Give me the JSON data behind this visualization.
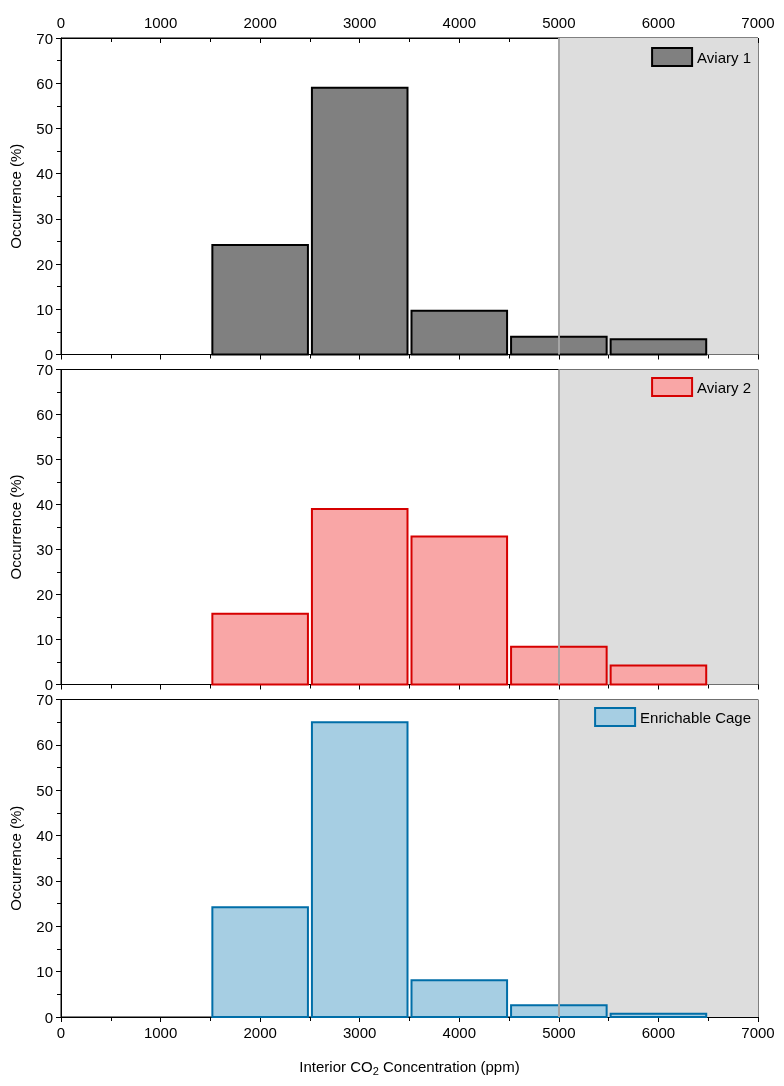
{
  "chart_data": [
    {
      "type": "histogram",
      "bins": [
        1500,
        2500,
        3500,
        4500,
        5500,
        6500
      ],
      "series": [
        {
          "name": "Aviary 1",
          "color": "#808080",
          "values": [
            24.2,
            59.0,
            9.7,
            3.9,
            3.4
          ]
        }
      ],
      "ylabel": "Occurrence (%)",
      "xlim": [
        0,
        7000
      ],
      "x2lim": [
        0,
        7000
      ],
      "x2ticks": [
        0,
        1000,
        2000,
        3000,
        4000,
        5000,
        6000,
        7000
      ],
      "ylim": [
        0,
        70
      ],
      "yticks": [
        0,
        10,
        20,
        30,
        40,
        50,
        60,
        70
      ],
      "tick_labels": "y",
      "bands": [
        {
          "axis": "x",
          "from": 5000,
          "to": 7000,
          "color": "#dddddd"
        }
      ],
      "ref_lines": [
        {
          "axis": "x",
          "value": 5000,
          "color": "#a6a6a6"
        }
      ],
      "legend": "top right",
      "grid": false
    },
    {
      "type": "histogram",
      "bins": [
        1500,
        2500,
        3500,
        4500,
        5500,
        6500
      ],
      "series": [
        {
          "name": "Aviary 2",
          "color": "#f9a6a6",
          "values": [
            15.7,
            39.0,
            32.9,
            8.4,
            4.2
          ]
        }
      ],
      "ylabel": "Occurrence (%)",
      "xlim": [
        0,
        7000
      ],
      "ylim": [
        0,
        70
      ],
      "yticks": [
        0,
        10,
        20,
        30,
        40,
        50,
        60,
        70
      ],
      "tick_labels": "y",
      "bands": [
        {
          "axis": "x",
          "from": 5000,
          "to": 7000,
          "color": "#dddddd"
        }
      ],
      "ref_lines": [
        {
          "axis": "x",
          "value": 5000,
          "color": "#a6a6a6"
        }
      ],
      "legend": "top right",
      "grid": false
    },
    {
      "type": "histogram",
      "bins": [
        1500,
        2500,
        3500,
        4500,
        5500,
        6500
      ],
      "series": [
        {
          "name": "Enrichable Cage",
          "color": "#a6cee3",
          "values": [
            24.2,
            65.0,
            8.1,
            2.6,
            0.7
          ]
        }
      ],
      "xlabel": "Interior CO$_{2}$ Concentration (ppm)",
      "ylabel": "Occurrence (%)",
      "xlim": [
        0,
        7000
      ],
      "xticks": [
        0,
        1000,
        2000,
        3000,
        4000,
        5000,
        6000,
        7000
      ],
      "ylim": [
        0,
        70
      ],
      "yticks": [
        0,
        10,
        20,
        30,
        40,
        50,
        60,
        70
      ],
      "bands": [
        {
          "axis": "x",
          "from": 5000,
          "to": 7000,
          "color": "#dddddd"
        }
      ],
      "ref_lines": [
        {
          "axis": "x",
          "value": 5000,
          "color": "#a6a6a6"
        }
      ],
      "legend": "top right",
      "grid": false
    }
  ]
}
